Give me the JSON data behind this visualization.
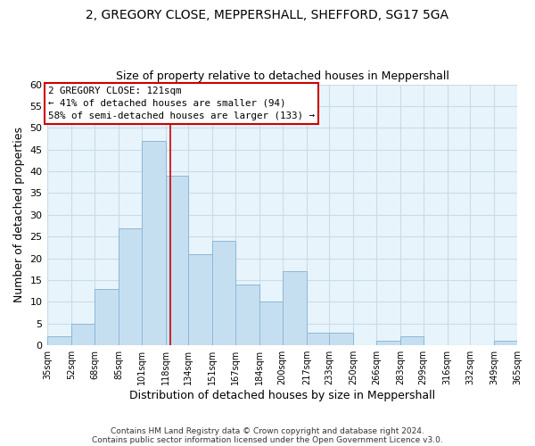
{
  "title": "2, GREGORY CLOSE, MEPPERSHALL, SHEFFORD, SG17 5GA",
  "subtitle": "Size of property relative to detached houses in Meppershall",
  "xlabel": "Distribution of detached houses by size in Meppershall",
  "ylabel": "Number of detached properties",
  "bin_labels": [
    "35sqm",
    "52sqm",
    "68sqm",
    "85sqm",
    "101sqm",
    "118sqm",
    "134sqm",
    "151sqm",
    "167sqm",
    "184sqm",
    "200sqm",
    "217sqm",
    "233sqm",
    "250sqm",
    "266sqm",
    "283sqm",
    "299sqm",
    "316sqm",
    "332sqm",
    "349sqm",
    "365sqm"
  ],
  "bin_edges": [
    35,
    52,
    68,
    85,
    101,
    118,
    134,
    151,
    167,
    184,
    200,
    217,
    233,
    250,
    266,
    283,
    299,
    316,
    332,
    349,
    365
  ],
  "counts": [
    2,
    5,
    13,
    27,
    47,
    39,
    21,
    24,
    14,
    10,
    17,
    3,
    3,
    0,
    1,
    2,
    0,
    0,
    0,
    1
  ],
  "bar_color": "#c6dff0",
  "bar_edge_color": "#8ab8d8",
  "vline_x": 121,
  "vline_color": "#cc0000",
  "ylim": [
    0,
    60
  ],
  "yticks": [
    0,
    5,
    10,
    15,
    20,
    25,
    30,
    35,
    40,
    45,
    50,
    55,
    60
  ],
  "annotation_title": "2 GREGORY CLOSE: 121sqm",
  "annotation_line1": "← 41% of detached houses are smaller (94)",
  "annotation_line2": "58% of semi-detached houses are larger (133) →",
  "annotation_box_color": "#ffffff",
  "annotation_box_edge": "#cc0000",
  "grid_color": "#c8dce8",
  "bg_color": "#ffffff",
  "plot_bg_color": "#e8f4fb",
  "footnote1": "Contains HM Land Registry data © Crown copyright and database right 2024.",
  "footnote2": "Contains public sector information licensed under the Open Government Licence v3.0."
}
